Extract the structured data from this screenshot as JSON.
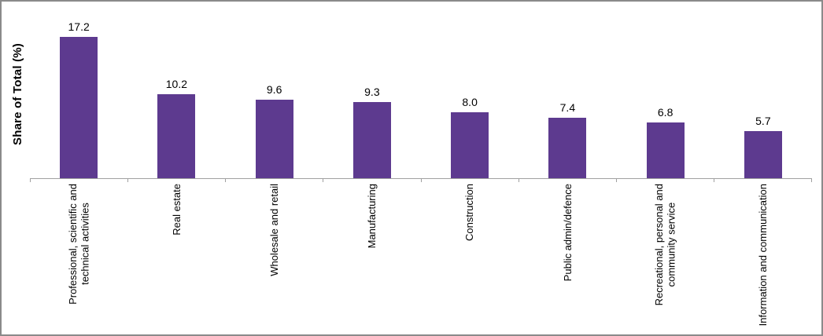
{
  "figure": {
    "background": "#ffffff",
    "border_color": "#8a8a8a"
  },
  "chart_data": {
    "type": "bar",
    "title": "",
    "xlabel": "",
    "ylabel": "Share of Total (%)",
    "categories": [
      "Professional, scientific and\ntechnical activities",
      "Real estate",
      "Wholesale and retail",
      "Manufacturing",
      "Construction",
      "Public admin/defence",
      "Recreational, personal and\ncommunity service",
      "Information and communication"
    ],
    "values": [
      17.2,
      10.2,
      9.6,
      9.3,
      8.0,
      7.4,
      6.8,
      5.7
    ],
    "value_labels": [
      "17.2",
      "10.2",
      "9.6",
      "9.3",
      "8.0",
      "7.4",
      "6.8",
      "5.7"
    ],
    "ylim": [
      0,
      20
    ],
    "grid": false,
    "legend": "none",
    "data_labels": "above-bars",
    "x_tick_label_rotation": 90,
    "bar_color": "#5d3a8f",
    "axis_color": "#a0a0a0",
    "text_color": "#000000"
  }
}
